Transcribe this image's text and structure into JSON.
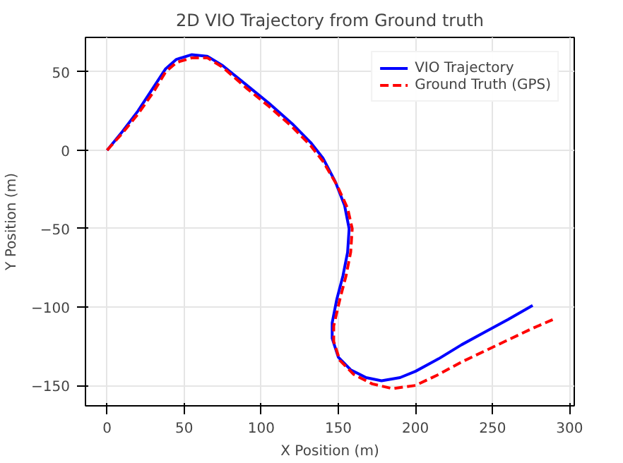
{
  "chart_data": {
    "type": "line",
    "title": "2D VIO Trajectory from Ground truth",
    "xlabel": "X Position (m)",
    "ylabel": "Y Position (m)",
    "xlim": [
      -14,
      303
    ],
    "ylim": [
      -163,
      72
    ],
    "xticks": [
      0,
      50,
      100,
      150,
      200,
      250,
      300
    ],
    "yticks": [
      -150,
      -100,
      -50,
      0,
      50
    ],
    "grid": true,
    "legend": "top right",
    "series": [
      {
        "name": "VIO Trajectory",
        "color": "#0000ff",
        "line_style": "solid",
        "x": [
          0,
          10,
          20,
          30,
          38,
          45,
          55,
          65,
          75,
          90,
          105,
          120,
          132,
          140,
          148,
          154,
          157,
          156,
          153,
          149,
          146,
          146,
          150,
          158,
          168,
          178,
          190,
          200,
          215,
          230,
          245,
          260,
          276
        ],
        "values": [
          0,
          12,
          25,
          40,
          52,
          58,
          61,
          60,
          54,
          42,
          30,
          17,
          5,
          -5,
          -20,
          -35,
          -50,
          -65,
          -80,
          -95,
          -110,
          -120,
          -132,
          -140,
          -145,
          -147,
          -145,
          -141,
          -133,
          -124,
          -116,
          -108,
          -99
        ]
      },
      {
        "name": "Ground Truth (GPS)",
        "color": "#ff0000",
        "line_style": "dashed",
        "x": [
          0,
          10,
          20,
          30,
          38,
          45,
          55,
          65,
          75,
          90,
          105,
          120,
          132,
          140,
          149,
          156,
          159,
          158,
          155,
          151,
          147,
          147,
          151,
          160,
          172,
          185,
          200,
          215,
          230,
          245,
          260,
          275,
          289
        ],
        "values": [
          0,
          11,
          23,
          37,
          50,
          56,
          59,
          59,
          53,
          40,
          28,
          15,
          3,
          -7,
          -22,
          -37,
          -50,
          -65,
          -80,
          -95,
          -112,
          -122,
          -134,
          -143,
          -149,
          -152,
          -150,
          -143,
          -135,
          -128,
          -121,
          -114,
          -108
        ]
      }
    ]
  }
}
